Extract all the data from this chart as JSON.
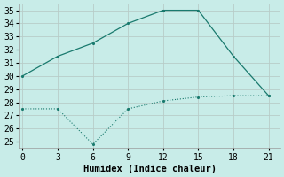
{
  "x": [
    0,
    3,
    6,
    9,
    12,
    15,
    18,
    21
  ],
  "line1": [
    30,
    31.5,
    32.5,
    34.0,
    35.0,
    35.0,
    31.5,
    28.5
  ],
  "line2": [
    27.5,
    27.5,
    24.8,
    27.5,
    28.1,
    28.4,
    28.5,
    28.5
  ],
  "line_color": "#1a7a6e",
  "bg_color": "#c8ece8",
  "grid_color": "#b8ccc8",
  "xlabel": "Humidex (Indice chaleur)",
  "ylim": [
    24.5,
    35.5
  ],
  "xlim": [
    -0.3,
    22.0
  ],
  "xticks": [
    0,
    3,
    6,
    9,
    12,
    15,
    18,
    21
  ],
  "yticks": [
    25,
    26,
    27,
    28,
    29,
    30,
    31,
    32,
    33,
    34,
    35
  ],
  "label_fontsize": 7.5,
  "tick_fontsize": 7
}
